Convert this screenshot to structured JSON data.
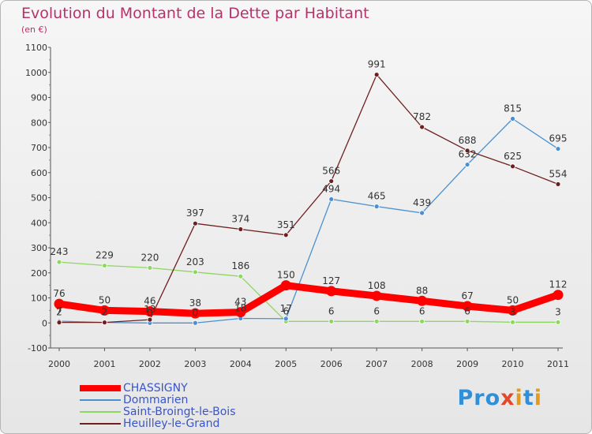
{
  "chart_data": {
    "type": "line",
    "title": "Evolution du Montant de la Dette par Habitant",
    "subtitle": "(en €)",
    "x": [
      "2000",
      "2001",
      "2002",
      "2003",
      "2004",
      "2005",
      "2006",
      "2007",
      "2008",
      "2009",
      "2010",
      "2011"
    ],
    "ylim": [
      -100,
      1100
    ],
    "yticks": [
      -100,
      0,
      100,
      200,
      300,
      400,
      500,
      600,
      700,
      800,
      900,
      1000,
      1100
    ],
    "grid": false,
    "legend_position": "bottom-left",
    "series": [
      {
        "name": "CHASSIGNY",
        "color": "#ff0000",
        "values": [
          76,
          50,
          46,
          38,
          43,
          150,
          127,
          108,
          88,
          67,
          50,
          112
        ]
      },
      {
        "name": "Dommarien",
        "color": "#4a90d0",
        "values": [
          7,
          2,
          0,
          0,
          18,
          17,
          494,
          465,
          439,
          632,
          815,
          695
        ]
      },
      {
        "name": "Saint-Broingt-le-Bois",
        "color": "#8cd860",
        "values": [
          243,
          229,
          220,
          203,
          186,
          6,
          6,
          6,
          6,
          6,
          3,
          3
        ]
      },
      {
        "name": "Heuilley-le-Grand",
        "color": "#6e2020",
        "values": [
          2,
          2,
          13,
          397,
          374,
          351,
          566,
          991,
          782,
          688,
          625,
          554
        ]
      }
    ]
  },
  "logo": {
    "p1": "Pro",
    "x": "x",
    "p2": "i",
    "t": "t",
    "p3": "i"
  }
}
